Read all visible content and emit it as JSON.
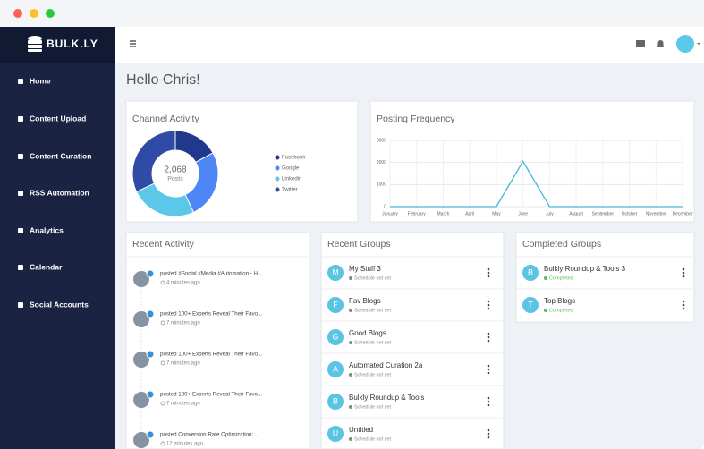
{
  "sidebar": {
    "logo": "BULK.LY",
    "menu": [
      "Home",
      "Content Upload",
      "Content Curation",
      "RSS Automation",
      "Analytics",
      "Calendar",
      "Social Accounts"
    ]
  },
  "greeting": "Hello Chris!",
  "chart_data": [
    {
      "type": "pie",
      "title": "Channel Activity",
      "total": "2,068",
      "total_label": "Posts",
      "categories": [
        "Facebook",
        "Google",
        "Linkedin",
        "Twitter"
      ],
      "values": [
        17,
        26,
        25,
        32
      ],
      "colors": [
        "#22388c",
        "#4e86f5",
        "#5bc8ea",
        "#2f4ba5"
      ]
    },
    {
      "type": "line",
      "title": "Posting Frequency",
      "categories": [
        "January",
        "February",
        "March",
        "April",
        "May",
        "June",
        "July",
        "August",
        "September",
        "October",
        "November",
        "December"
      ],
      "series": [
        {
          "color": "#4ab4d8",
          "values": [
            0,
            0,
            0,
            0,
            0,
            2050,
            0,
            0,
            0,
            0,
            0,
            0
          ]
        }
      ],
      "ylim": [
        0,
        3000
      ],
      "yticks": [
        0,
        1000,
        2000,
        3000
      ],
      "grid": true
    }
  ],
  "recent_activity": {
    "title": "Recent Activity",
    "items": [
      {
        "text": "posted #Social #Media #Automation - H...",
        "time": "4 minutes ago"
      },
      {
        "text": "posted 100+ Experts Reveal Their Favo...",
        "time": "7 minutes ago"
      },
      {
        "text": "posted 100+ Experts Reveal Their Favo...",
        "time": "7 minutes ago"
      },
      {
        "text": "posted 100+ Experts Reveal Their Favo...",
        "time": "7 minutes ago"
      },
      {
        "text": "posted Conversion Rate Optimization: ...",
        "time": "12 minutes ago"
      }
    ]
  },
  "recent_groups": {
    "title": "Recent Groups",
    "items": [
      {
        "initial": "M",
        "name": "My Stuff 3",
        "status": "Schedule not set"
      },
      {
        "initial": "F",
        "name": "Fav Blogs",
        "status": "Schedule not set"
      },
      {
        "initial": "G",
        "name": "Good Blogs",
        "status": "Schedule not set"
      },
      {
        "initial": "A",
        "name": "Automated Curation 2a",
        "status": "Schedule not set"
      },
      {
        "initial": "B",
        "name": "Bulkly Roundup & Tools",
        "status": "Schedule not set"
      },
      {
        "initial": "U",
        "name": "Untitled",
        "status": "Schedule not set"
      }
    ]
  },
  "completed_groups": {
    "title": "Completed Groups",
    "items": [
      {
        "initial": "B",
        "name": "Bulkly Roundup & Tools 3",
        "status": "Completed"
      },
      {
        "initial": "T",
        "name": "Top Blogs",
        "status": "Completed"
      }
    ]
  }
}
